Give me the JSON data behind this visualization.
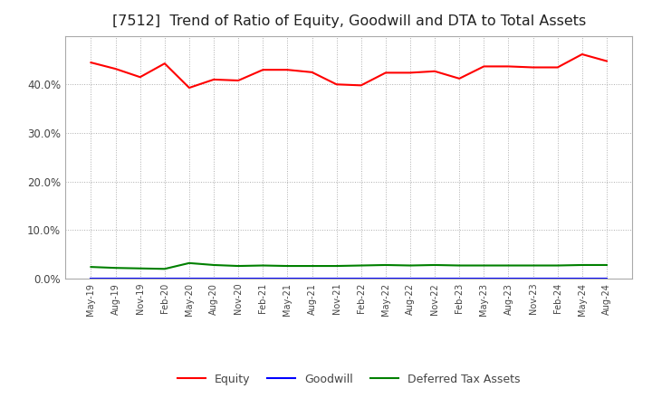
{
  "title": "[7512]  Trend of Ratio of Equity, Goodwill and DTA to Total Assets",
  "x_labels": [
    "May-19",
    "Aug-19",
    "Nov-19",
    "Feb-20",
    "May-20",
    "Aug-20",
    "Nov-20",
    "Feb-21",
    "May-21",
    "Aug-21",
    "Nov-21",
    "Feb-22",
    "May-22",
    "Aug-22",
    "Nov-22",
    "Feb-23",
    "May-23",
    "Aug-23",
    "Nov-23",
    "Feb-24",
    "May-24",
    "Aug-24"
  ],
  "equity": [
    0.445,
    0.432,
    0.415,
    0.443,
    0.393,
    0.41,
    0.408,
    0.43,
    0.43,
    0.425,
    0.4,
    0.398,
    0.424,
    0.424,
    0.427,
    0.412,
    0.437,
    0.437,
    0.435,
    0.435,
    0.462,
    0.448
  ],
  "goodwill": [
    0.0,
    0.0,
    0.0,
    0.0,
    0.0,
    0.0,
    0.0,
    0.0,
    0.0,
    0.0,
    0.0,
    0.0,
    0.0,
    0.0,
    0.0,
    0.0,
    0.0,
    0.0,
    0.0,
    0.0,
    0.0,
    0.0
  ],
  "dta": [
    0.024,
    0.022,
    0.021,
    0.02,
    0.032,
    0.028,
    0.026,
    0.027,
    0.026,
    0.026,
    0.026,
    0.027,
    0.028,
    0.027,
    0.028,
    0.027,
    0.027,
    0.027,
    0.027,
    0.027,
    0.028,
    0.028
  ],
  "equity_color": "#FF0000",
  "goodwill_color": "#0000FF",
  "dta_color": "#008000",
  "bg_color": "#FFFFFF",
  "plot_bg_color": "#FFFFFF",
  "grid_color": "#999999",
  "ylim": [
    0.0,
    0.5
  ],
  "yticks": [
    0.0,
    0.1,
    0.2,
    0.3,
    0.4
  ],
  "title_fontsize": 11.5
}
